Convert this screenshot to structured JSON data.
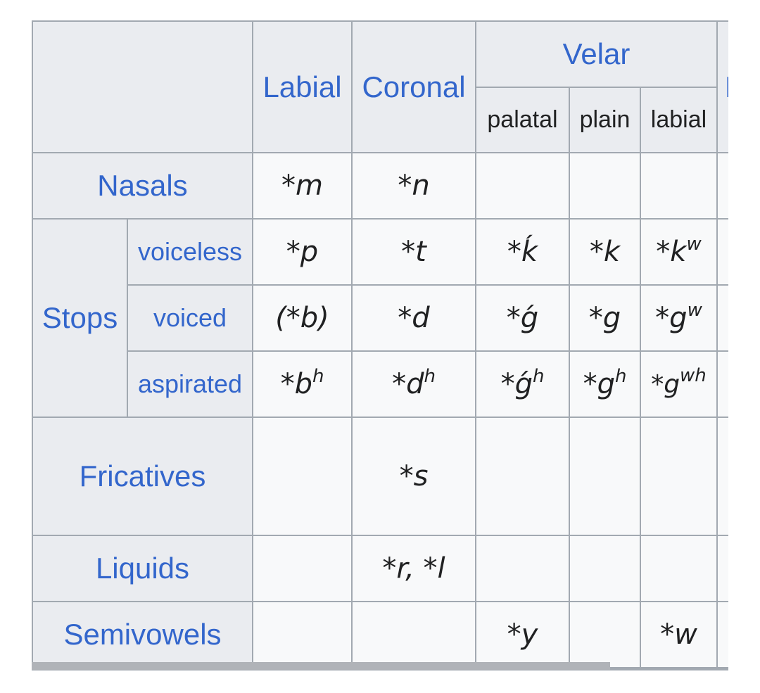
{
  "header": {
    "labial": "Labial",
    "coronal": "Coronal",
    "velar": "Velar",
    "velar_sub": [
      "palatal",
      "plain",
      "labial"
    ],
    "next_col_partial": "L"
  },
  "rows": {
    "nasals": {
      "label": "Nasals",
      "labial": "*m",
      "coronal": "*n"
    },
    "stops": {
      "label": "Stops",
      "voiceless": {
        "label": "voiceless",
        "labial": "*p",
        "coronal": "*t",
        "palatal": "*ḱ",
        "plain": "*k",
        "labial_velar_base": "*k",
        "labial_velar_sup": "w"
      },
      "voiced": {
        "label": "voiced",
        "labial": "(*b)",
        "coronal": "*d",
        "palatal": "*ǵ",
        "plain": "*g",
        "labial_velar_base": "*g",
        "labial_velar_sup": "w"
      },
      "aspirated": {
        "label": "aspirated",
        "labial_base": "*b",
        "labial_sup": "h",
        "coronal_base": "*d",
        "coronal_sup": "h",
        "palatal_base": "*ǵ",
        "palatal_sup": "h",
        "plain_base": "*g",
        "plain_sup": "h",
        "labial_velar_base": "*g",
        "labial_velar_sup": "wh"
      }
    },
    "fricatives": {
      "label": "Fricatives",
      "coronal": "*s"
    },
    "liquids": {
      "label": "Liquids",
      "coronal": "*r, *l"
    },
    "semivowels": {
      "label": "Semivowels",
      "palatal": "*y",
      "labial_velar": "*w"
    }
  }
}
